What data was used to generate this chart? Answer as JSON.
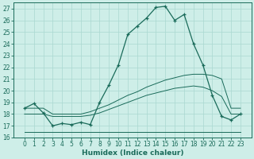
{
  "xlabel": "Humidex (Indice chaleur)",
  "x_ticks": [
    0,
    1,
    2,
    3,
    4,
    5,
    6,
    7,
    8,
    9,
    10,
    11,
    12,
    13,
    14,
    15,
    16,
    17,
    18,
    19,
    20,
    21,
    22,
    23
  ],
  "ylim": [
    16,
    27.5
  ],
  "yticks": [
    16,
    17,
    18,
    19,
    20,
    21,
    22,
    23,
    24,
    25,
    26,
    27
  ],
  "bg_color": "#ceeee8",
  "line_color": "#1a6b5a",
  "grid_color": "#aad8d0",
  "curve_main": [
    18.5,
    18.9,
    18.1,
    17.0,
    17.2,
    17.1,
    17.3,
    17.1,
    19.0,
    20.5,
    22.2,
    24.8,
    25.5,
    26.2,
    27.1,
    27.2,
    26.0,
    26.5,
    24.0,
    22.2,
    19.6,
    17.8,
    17.5,
    18.0
  ],
  "curve_upper": [
    18.5,
    18.5,
    18.5,
    18.0,
    18.0,
    18.0,
    18.0,
    18.2,
    18.5,
    18.8,
    19.2,
    19.6,
    19.9,
    20.3,
    20.6,
    20.9,
    21.1,
    21.3,
    21.4,
    21.4,
    21.3,
    21.0,
    18.5,
    18.5
  ],
  "curve_mid": [
    18.0,
    18.0,
    18.0,
    17.8,
    17.8,
    17.8,
    17.8,
    17.9,
    18.1,
    18.4,
    18.7,
    19.0,
    19.3,
    19.6,
    19.8,
    20.0,
    20.2,
    20.3,
    20.4,
    20.3,
    20.0,
    19.5,
    18.0,
    18.0
  ],
  "curve_lower": [
    16.5,
    16.5,
    16.5,
    16.5,
    16.5,
    16.5,
    16.5,
    16.5,
    16.5,
    16.5,
    16.5,
    16.5,
    16.5,
    16.5,
    16.5,
    16.5,
    16.5,
    16.5,
    16.5,
    16.5,
    16.5,
    16.5,
    16.5,
    16.5
  ]
}
